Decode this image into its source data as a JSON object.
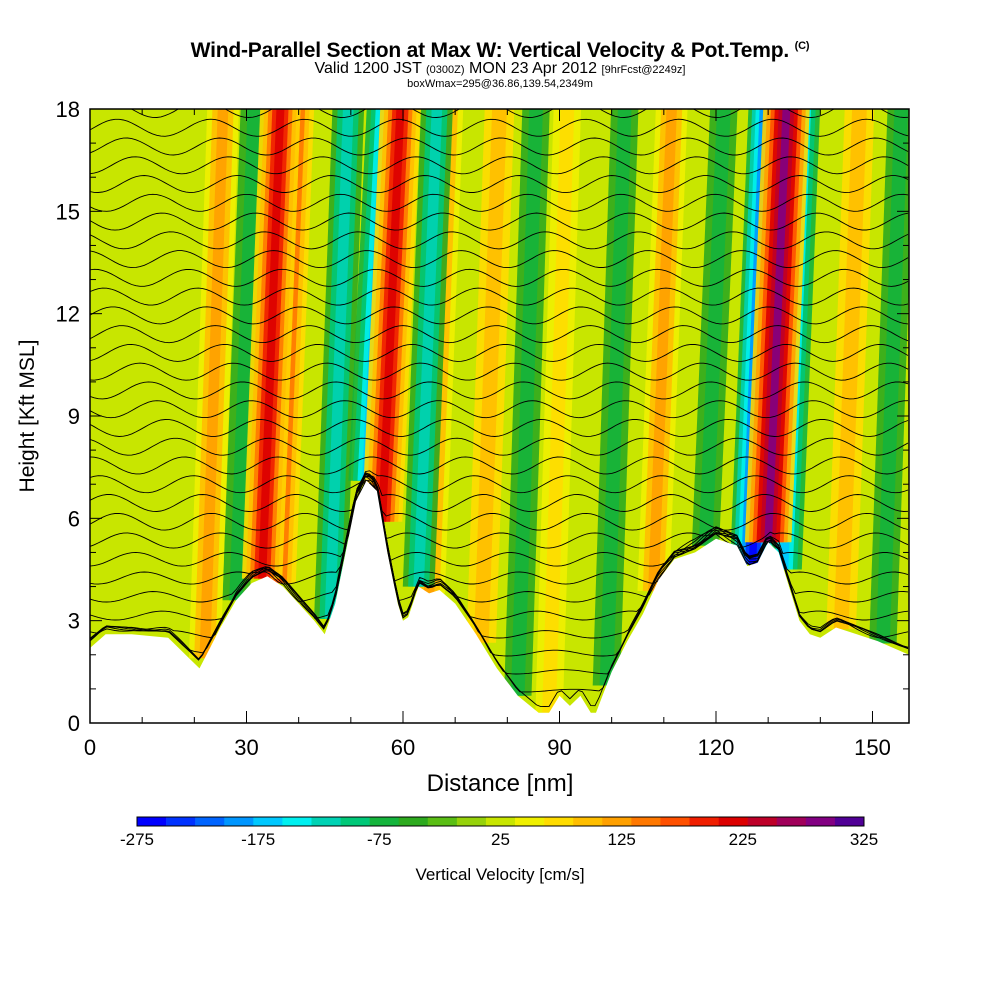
{
  "header": {
    "title_main": "Wind-Parallel Section at Max W: Vertical Velocity & Pot.Temp.",
    "title_mark": "(C)",
    "valid_prefix": "Valid 1200 JST",
    "valid_utc": "(0300Z)",
    "valid_date": "MON 23 Apr 2012",
    "forecast": "[9hrFcst@2249z]",
    "box_info": "boxWmax=295@36.86,139.54,2349m"
  },
  "colorbar": {
    "label": "Vertical Velocity [cm/s]",
    "tick_labels": [
      "-275",
      "-175",
      "-75",
      "25",
      "125",
      "225",
      "325"
    ],
    "colors": [
      "#0000ff",
      "#0032ff",
      "#0064ff",
      "#0096ff",
      "#00c8ff",
      "#00f0f0",
      "#00d2b4",
      "#00c878",
      "#14b43c",
      "#2daa1e",
      "#5abe14",
      "#96d20a",
      "#c8e600",
      "#f0f000",
      "#ffdc00",
      "#ffbe00",
      "#ffa000",
      "#ff7800",
      "#ff5000",
      "#f01e00",
      "#dc0000",
      "#be0028",
      "#a0005a",
      "#820082",
      "#500096"
    ]
  },
  "chart_data": {
    "type": "heatmap",
    "title": "Wind-Parallel Section at Max W: Vertical Velocity & Pot.Temp.",
    "xlabel": "Distance [nm]",
    "ylabel": "Height [Kft MSL]",
    "xlim": [
      0,
      157
    ],
    "ylim": [
      0,
      18
    ],
    "x_ticks": [
      0,
      30,
      60,
      90,
      120,
      150
    ],
    "y_ticks": [
      0,
      3,
      6,
      9,
      12,
      15,
      18
    ],
    "colorbar_range": [
      -275,
      325
    ],
    "terrain": {
      "x": [
        0,
        3,
        8,
        15,
        19,
        21,
        23,
        25,
        28,
        31,
        34,
        37,
        40,
        43,
        45,
        47,
        49,
        51,
        53,
        55,
        57,
        59,
        60,
        61,
        63,
        65,
        67,
        70,
        74,
        78,
        82,
        86,
        88,
        90,
        92,
        94,
        96,
        97,
        98,
        100,
        103,
        106,
        109,
        112,
        116,
        120,
        124,
        126,
        128,
        129,
        130,
        132,
        134,
        136,
        138,
        140,
        143,
        147,
        151,
        154,
        157
      ],
      "height": [
        2.2,
        2.6,
        2.6,
        2.5,
        1.9,
        1.6,
        2.2,
        2.8,
        3.6,
        4.1,
        4.3,
        4.0,
        3.5,
        3.0,
        2.6,
        3.5,
        5.0,
        6.5,
        7.1,
        6.8,
        5.0,
        3.5,
        3.0,
        3.1,
        4.0,
        3.8,
        3.9,
        3.5,
        2.6,
        1.6,
        0.8,
        0.3,
        0.3,
        0.8,
        0.5,
        0.8,
        0.3,
        0.3,
        0.7,
        1.5,
        2.4,
        3.2,
        4.2,
        4.8,
        5.0,
        5.4,
        5.2,
        4.6,
        4.7,
        5.0,
        5.3,
        5.0,
        4.0,
        3.0,
        2.6,
        2.5,
        2.8,
        2.6,
        2.4,
        2.2,
        2.0
      ]
    },
    "updrafts": [
      {
        "x": 22,
        "w": 125
      },
      {
        "x": 33,
        "w": 225
      },
      {
        "x": 36,
        "w": 175
      },
      {
        "x": 56,
        "w": 225
      },
      {
        "x": 65,
        "w": 125
      },
      {
        "x": 75,
        "w": 100
      },
      {
        "x": 88,
        "w": 75
      },
      {
        "x": 108,
        "w": 125
      },
      {
        "x": 130,
        "w": 295
      },
      {
        "x": 144,
        "w": 100
      }
    ],
    "downdrafts": [
      {
        "x": 28,
        "w": -75
      },
      {
        "x": 46,
        "w": -125
      },
      {
        "x": 53,
        "w": -175
      },
      {
        "x": 63,
        "w": -125
      },
      {
        "x": 82,
        "w": -75
      },
      {
        "x": 99,
        "w": -75
      },
      {
        "x": 118,
        "w": -75
      },
      {
        "x": 127,
        "w": -275
      },
      {
        "x": 133,
        "w": -175
      },
      {
        "x": 152,
        "w": -75
      }
    ],
    "max_w": {
      "value": 295,
      "lat": 36.86,
      "lon": 139.54,
      "height_m": 2349
    }
  }
}
